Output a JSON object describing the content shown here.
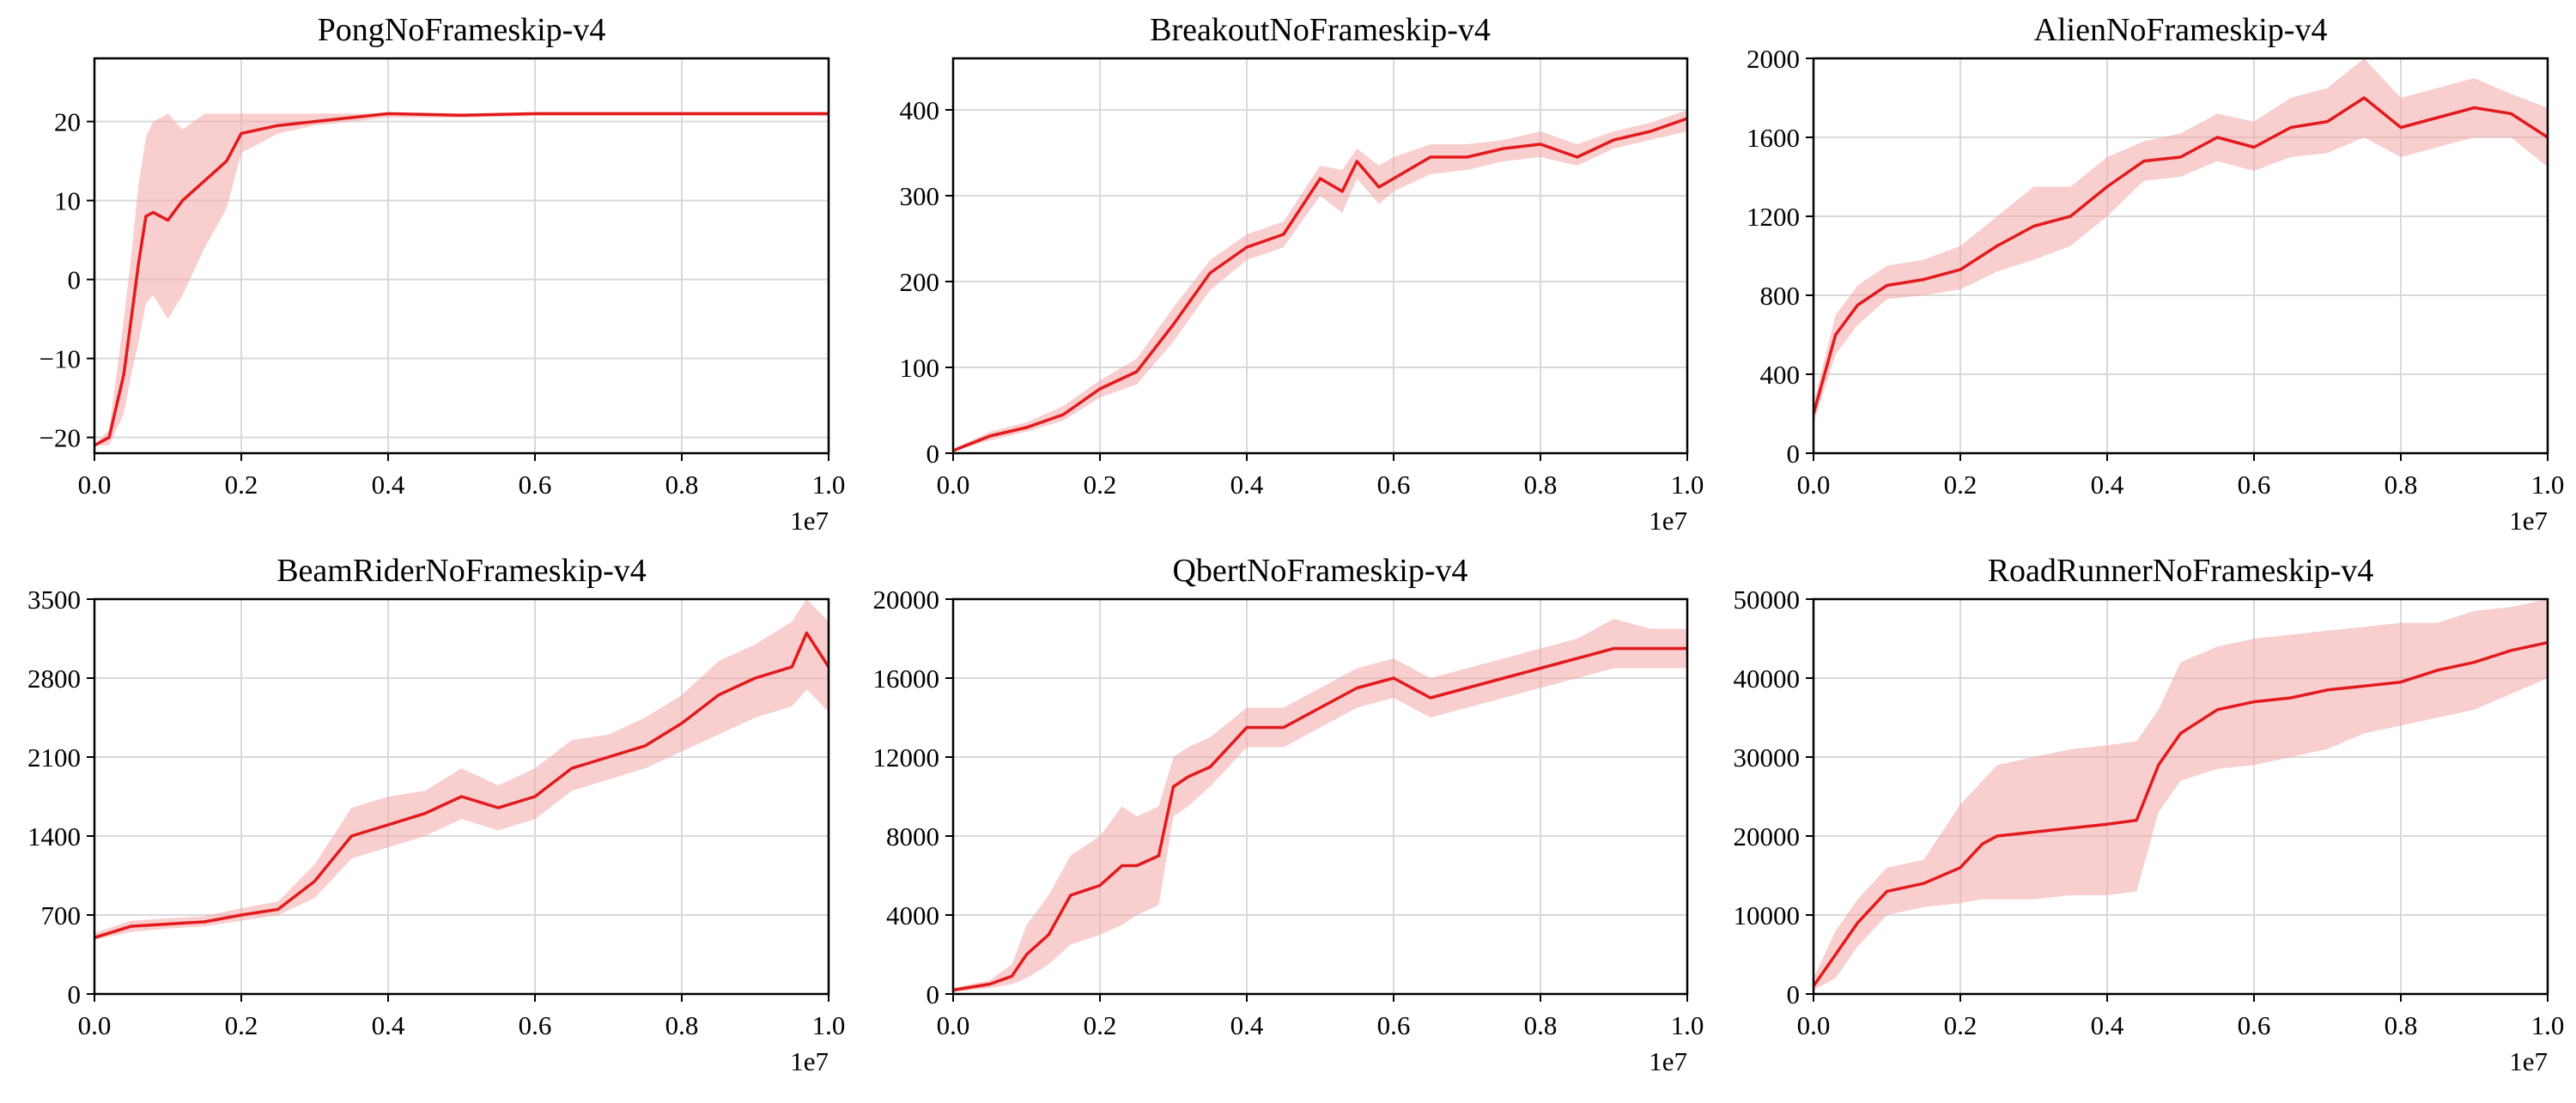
{
  "figure": {
    "background": "#ffffff"
  },
  "style": {
    "line_color": "#e31a1c",
    "band_color": "#f4a5a8",
    "grid_color": "#d9d9d9"
  },
  "chart_data": [
    {
      "type": "line",
      "title": "PongNoFrameskip-v4",
      "xlim": [
        0,
        1
      ],
      "x_offset_label": "1e7",
      "xticks": [
        0.0,
        0.2,
        0.4,
        0.6,
        0.8,
        1.0
      ],
      "xtick_labels": [
        "0.0",
        "0.2",
        "0.4",
        "0.6",
        "0.8",
        "1.0"
      ],
      "ylim": [
        -22,
        28
      ],
      "yticks": [
        -20,
        -10,
        0,
        10,
        20
      ],
      "ytick_labels": [
        "−20",
        "−10",
        "0",
        "10",
        "20"
      ],
      "grid": true,
      "series": [
        {
          "x": [
            0,
            0.02,
            0.04,
            0.05,
            0.06,
            0.07,
            0.08,
            0.1,
            0.12,
            0.15,
            0.18,
            0.2,
            0.25,
            0.3,
            0.35,
            0.4,
            0.5,
            0.6,
            0.7,
            0.8,
            0.9,
            1.0
          ],
          "mean": [
            -21,
            -20,
            -12,
            -5,
            2,
            8,
            8.5,
            7.5,
            10,
            12.5,
            15,
            18.5,
            19.5,
            20,
            20.5,
            21,
            20.8,
            21,
            21,
            21,
            21,
            21
          ],
          "lower": [
            -21,
            -21,
            -17,
            -12,
            -8,
            -3,
            -2,
            -5,
            -2,
            4,
            9,
            16,
            18.5,
            19.5,
            20,
            20.5,
            20.5,
            20.7,
            20.7,
            20.7,
            20.7,
            20.7
          ],
          "upper": [
            -21,
            -19,
            -5,
            3,
            12,
            18,
            20,
            21,
            19,
            21,
            21,
            21,
            21,
            21,
            21,
            21,
            21,
            21,
            21,
            21,
            21,
            21
          ]
        }
      ]
    },
    {
      "type": "line",
      "title": "BreakoutNoFrameskip-v4",
      "xlim": [
        0,
        1
      ],
      "x_offset_label": "1e7",
      "xticks": [
        0.0,
        0.2,
        0.4,
        0.6,
        0.8,
        1.0
      ],
      "xtick_labels": [
        "0.0",
        "0.2",
        "0.4",
        "0.6",
        "0.8",
        "1.0"
      ],
      "ylim": [
        0,
        460
      ],
      "yticks": [
        0,
        100,
        200,
        300,
        400
      ],
      "ytick_labels": [
        "0",
        "100",
        "200",
        "300",
        "400"
      ],
      "grid": true,
      "series": [
        {
          "x": [
            0,
            0.05,
            0.1,
            0.15,
            0.2,
            0.25,
            0.3,
            0.35,
            0.4,
            0.45,
            0.5,
            0.53,
            0.55,
            0.58,
            0.6,
            0.65,
            0.7,
            0.75,
            0.8,
            0.85,
            0.9,
            0.95,
            1.0
          ],
          "mean": [
            3,
            20,
            30,
            45,
            75,
            95,
            150,
            210,
            240,
            255,
            320,
            305,
            340,
            310,
            320,
            345,
            345,
            355,
            360,
            345,
            365,
            375,
            390
          ],
          "lower": [
            2,
            15,
            25,
            38,
            65,
            80,
            130,
            190,
            225,
            240,
            300,
            280,
            320,
            290,
            305,
            325,
            330,
            340,
            345,
            335,
            355,
            365,
            375
          ],
          "upper": [
            5,
            25,
            36,
            55,
            85,
            110,
            170,
            225,
            255,
            270,
            335,
            330,
            355,
            335,
            345,
            360,
            360,
            365,
            375,
            360,
            375,
            385,
            400
          ]
        }
      ]
    },
    {
      "type": "line",
      "title": "AlienNoFrameskip-v4",
      "xlim": [
        0,
        1
      ],
      "x_offset_label": "1e7",
      "xticks": [
        0.0,
        0.2,
        0.4,
        0.6,
        0.8,
        1.0
      ],
      "xtick_labels": [
        "0.0",
        "0.2",
        "0.4",
        "0.6",
        "0.8",
        "1.0"
      ],
      "ylim": [
        0,
        2000
      ],
      "yticks": [
        0,
        400,
        800,
        1200,
        1600,
        2000
      ],
      "ytick_labels": [
        "0",
        "400",
        "800",
        "1200",
        "1600",
        "2000"
      ],
      "grid": true,
      "series": [
        {
          "x": [
            0,
            0.03,
            0.06,
            0.1,
            0.15,
            0.2,
            0.25,
            0.3,
            0.35,
            0.4,
            0.45,
            0.5,
            0.55,
            0.6,
            0.65,
            0.7,
            0.75,
            0.8,
            0.85,
            0.9,
            0.95,
            1.0
          ],
          "mean": [
            200,
            600,
            750,
            850,
            880,
            930,
            1050,
            1150,
            1200,
            1350,
            1480,
            1500,
            1600,
            1550,
            1650,
            1680,
            1800,
            1650,
            1700,
            1750,
            1720,
            1600
          ],
          "lower": [
            150,
            500,
            650,
            780,
            800,
            830,
            920,
            980,
            1050,
            1200,
            1380,
            1400,
            1480,
            1430,
            1500,
            1520,
            1600,
            1500,
            1550,
            1600,
            1600,
            1450
          ],
          "upper": [
            250,
            700,
            850,
            950,
            980,
            1050,
            1200,
            1350,
            1350,
            1500,
            1580,
            1620,
            1720,
            1680,
            1800,
            1850,
            2000,
            1800,
            1850,
            1900,
            1820,
            1750
          ]
        }
      ]
    },
    {
      "type": "line",
      "title": "BeamRiderNoFrameskip-v4",
      "xlim": [
        0,
        1
      ],
      "x_offset_label": "1e7",
      "xticks": [
        0.0,
        0.2,
        0.4,
        0.6,
        0.8,
        1.0
      ],
      "xtick_labels": [
        "0.0",
        "0.2",
        "0.4",
        "0.6",
        "0.8",
        "1.0"
      ],
      "ylim": [
        0,
        3500
      ],
      "yticks": [
        0,
        700,
        1400,
        2100,
        2800,
        3500
      ],
      "ytick_labels": [
        "0",
        "700",
        "1400",
        "2100",
        "2800",
        "3500"
      ],
      "grid": true,
      "series": [
        {
          "x": [
            0,
            0.05,
            0.1,
            0.15,
            0.2,
            0.25,
            0.3,
            0.35,
            0.4,
            0.45,
            0.5,
            0.55,
            0.6,
            0.65,
            0.7,
            0.75,
            0.8,
            0.85,
            0.9,
            0.95,
            0.97,
            1.0
          ],
          "mean": [
            500,
            600,
            620,
            640,
            700,
            750,
            1000,
            1400,
            1500,
            1600,
            1750,
            1650,
            1750,
            2000,
            2100,
            2200,
            2400,
            2650,
            2800,
            2900,
            3200,
            2900
          ],
          "lower": [
            480,
            550,
            580,
            600,
            650,
            700,
            850,
            1200,
            1300,
            1400,
            1550,
            1450,
            1550,
            1800,
            1900,
            2000,
            2150,
            2300,
            2450,
            2550,
            2700,
            2500
          ],
          "upper": [
            540,
            650,
            670,
            690,
            760,
            820,
            1150,
            1650,
            1750,
            1800,
            2000,
            1850,
            2000,
            2250,
            2300,
            2450,
            2650,
            2950,
            3100,
            3300,
            3500,
            3300
          ]
        }
      ]
    },
    {
      "type": "line",
      "title": "QbertNoFrameskip-v4",
      "xlim": [
        0,
        1
      ],
      "x_offset_label": "1e7",
      "xticks": [
        0.0,
        0.2,
        0.4,
        0.6,
        0.8,
        1.0
      ],
      "xtick_labels": [
        "0.0",
        "0.2",
        "0.4",
        "0.6",
        "0.8",
        "1.0"
      ],
      "ylim": [
        0,
        20000
      ],
      "yticks": [
        0,
        4000,
        8000,
        12000,
        16000,
        20000
      ],
      "ytick_labels": [
        "0",
        "4000",
        "8000",
        "12000",
        "16000",
        "20000"
      ],
      "grid": true,
      "series": [
        {
          "x": [
            0,
            0.05,
            0.08,
            0.1,
            0.13,
            0.16,
            0.2,
            0.23,
            0.25,
            0.28,
            0.3,
            0.32,
            0.35,
            0.4,
            0.45,
            0.5,
            0.55,
            0.6,
            0.65,
            0.7,
            0.75,
            0.8,
            0.85,
            0.9,
            0.95,
            1.0
          ],
          "mean": [
            200,
            500,
            900,
            2000,
            3000,
            5000,
            5500,
            6500,
            6500,
            7000,
            10500,
            11000,
            11500,
            13500,
            13500,
            14500,
            15500,
            16000,
            15000,
            15500,
            16000,
            16500,
            17000,
            17500,
            17500,
            17500
          ],
          "lower": [
            100,
            300,
            500,
            800,
            1500,
            2500,
            3000,
            3500,
            4000,
            4500,
            9000,
            9500,
            10500,
            12500,
            12500,
            13500,
            14500,
            15000,
            14000,
            14500,
            15000,
            15500,
            16000,
            16500,
            16500,
            16500
          ],
          "upper": [
            300,
            700,
            1500,
            3500,
            5000,
            7000,
            8000,
            9500,
            9000,
            9500,
            12000,
            12500,
            13000,
            14500,
            14500,
            15500,
            16500,
            17000,
            16000,
            16500,
            17000,
            17500,
            18000,
            19000,
            18500,
            18500
          ]
        }
      ]
    },
    {
      "type": "line",
      "title": "RoadRunnerNoFrameskip-v4",
      "xlim": [
        0,
        1
      ],
      "x_offset_label": "1e7",
      "xticks": [
        0.0,
        0.2,
        0.4,
        0.6,
        0.8,
        1.0
      ],
      "xtick_labels": [
        "0.0",
        "0.2",
        "0.4",
        "0.6",
        "0.8",
        "1.0"
      ],
      "ylim": [
        0,
        50000
      ],
      "yticks": [
        0,
        10000,
        20000,
        30000,
        40000,
        50000
      ],
      "ytick_labels": [
        "0",
        "10000",
        "20000",
        "30000",
        "40000",
        "50000"
      ],
      "grid": true,
      "series": [
        {
          "x": [
            0,
            0.03,
            0.06,
            0.1,
            0.15,
            0.2,
            0.23,
            0.25,
            0.3,
            0.35,
            0.4,
            0.44,
            0.47,
            0.5,
            0.55,
            0.6,
            0.65,
            0.7,
            0.75,
            0.8,
            0.85,
            0.9,
            0.95,
            1.0
          ],
          "mean": [
            1000,
            5000,
            9000,
            13000,
            14000,
            16000,
            19000,
            20000,
            20500,
            21000,
            21500,
            22000,
            29000,
            33000,
            36000,
            37000,
            37500,
            38500,
            39000,
            39500,
            41000,
            42000,
            43500,
            44500
          ],
          "lower": [
            500,
            2000,
            6000,
            10000,
            11000,
            11500,
            12000,
            12000,
            12000,
            12500,
            12500,
            13000,
            23000,
            27000,
            28500,
            29000,
            30000,
            31000,
            33000,
            34000,
            35000,
            36000,
            38000,
            40000
          ],
          "upper": [
            2000,
            8000,
            12000,
            16000,
            17000,
            24000,
            27000,
            29000,
            30000,
            31000,
            31500,
            32000,
            36000,
            42000,
            44000,
            45000,
            45500,
            46000,
            46500,
            47000,
            47000,
            48500,
            49000,
            50000
          ]
        }
      ]
    }
  ]
}
